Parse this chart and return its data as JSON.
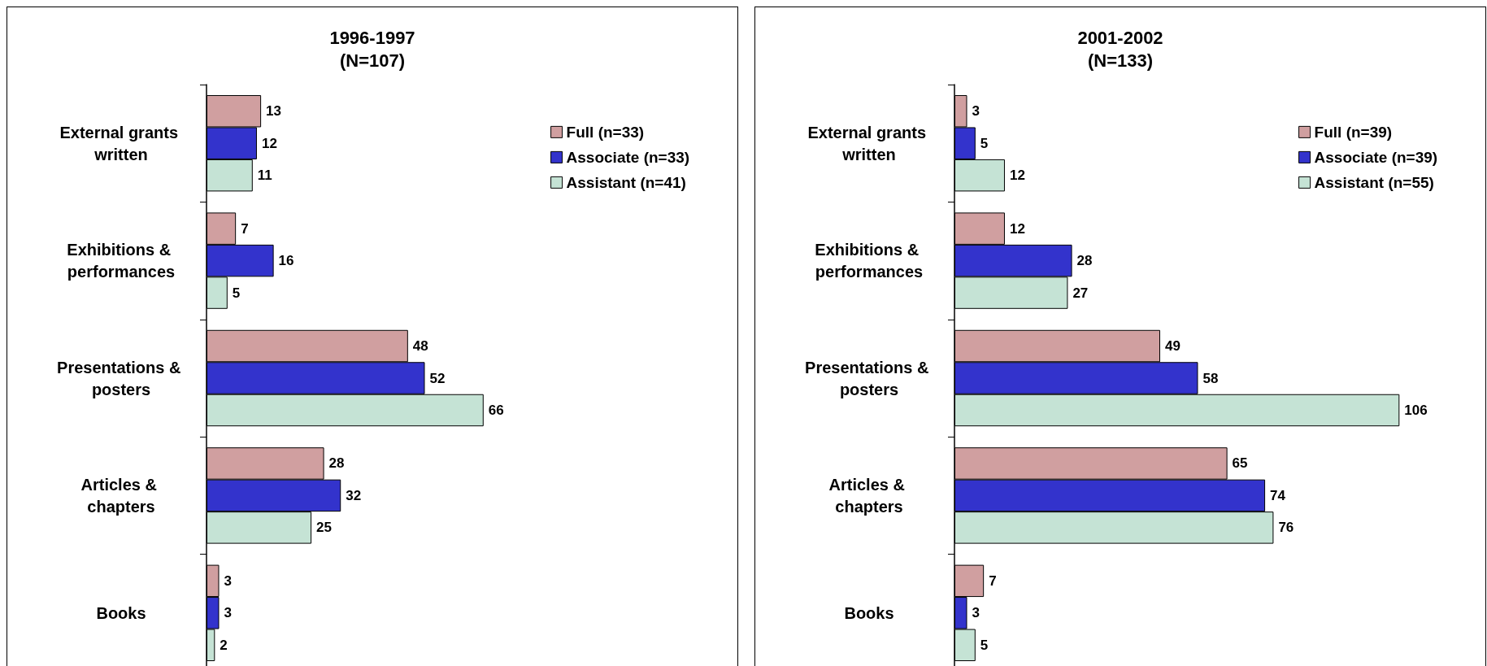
{
  "chart_data": [
    {
      "type": "bar",
      "orientation": "horizontal",
      "title": "1996-1997\n(N=107)",
      "categories": [
        "External grants written",
        "Exhibitions & performances",
        "Presentations & posters",
        "Articles & chapters",
        "Books"
      ],
      "data_labels": true,
      "legend": "top right",
      "series": [
        {
          "name": "Full (n=33)",
          "color": "#d09fa0",
          "values": [
            13,
            7,
            48,
            28,
            3
          ]
        },
        {
          "name": "Associate (n=33)",
          "color": "#3333cc",
          "values": [
            12,
            16,
            52,
            32,
            3
          ]
        },
        {
          "name": "Assistant (n=41)",
          "color": "#c5e3d5",
          "values": [
            11,
            5,
            66,
            25,
            2
          ]
        }
      ]
    },
    {
      "type": "bar",
      "orientation": "horizontal",
      "title": "2001-2002\n(N=133)",
      "categories": [
        "External grants written",
        "Exhibitions & performances",
        "Presentations & posters",
        "Articles & chapters",
        "Books"
      ],
      "data_labels": true,
      "legend": "top right",
      "series": [
        {
          "name": "Full (n=39)",
          "color": "#d09fa0",
          "values": [
            3,
            12,
            49,
            65,
            7
          ]
        },
        {
          "name": "Associate (n=39)",
          "color": "#3333cc",
          "values": [
            5,
            28,
            58,
            74,
            3
          ]
        },
        {
          "name": "Assistant (n=55)",
          "color": "#c5e3d5",
          "values": [
            12,
            27,
            106,
            76,
            5
          ]
        }
      ]
    }
  ]
}
